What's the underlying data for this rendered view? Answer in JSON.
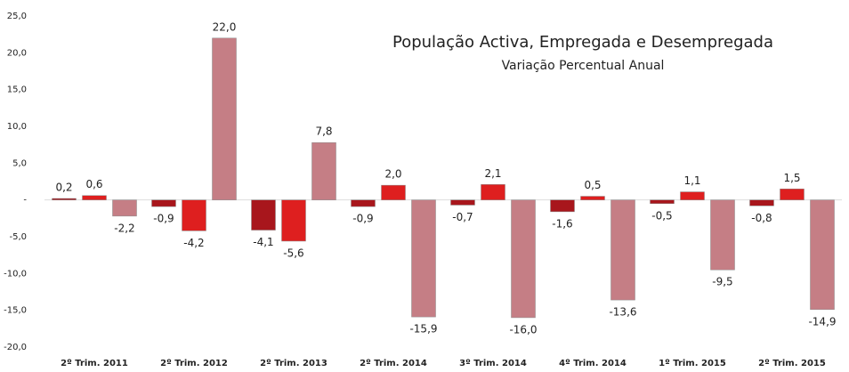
{
  "chart_data": {
    "type": "bar",
    "title": "População Activa, Empregada e Desempregada",
    "subtitle": "Variação Percentual Anual",
    "categories": [
      "2º Trim. 2011",
      "2º Trim. 2012",
      "2º Trim. 2013",
      "2º Trim. 2014",
      "3º Trim. 2014",
      "4º Trim. 2014",
      "1º Trim. 2015",
      "2º Trim. 2015"
    ],
    "series": [
      {
        "color": "#a8161c",
        "values": [
          0.2,
          -0.9,
          -4.1,
          -0.9,
          -0.7,
          -1.6,
          -0.5,
          -0.8
        ],
        "value_labels": [
          "0,2",
          "-0,9",
          "-4,1",
          "-0,9",
          "-0,7",
          "-1,6",
          "-0,5",
          "-0,8"
        ]
      },
      {
        "color": "#de1f1f",
        "values": [
          0.6,
          -4.2,
          -5.6,
          2.0,
          2.1,
          0.5,
          1.1,
          1.5
        ],
        "value_labels": [
          "0,6",
          "-4,2",
          "-5,6",
          "2,0",
          "2,1",
          "0,5",
          "1,1",
          "1,5"
        ]
      },
      {
        "color": "#c57e85",
        "values": [
          -2.2,
          22.0,
          7.8,
          -15.9,
          -16.0,
          -13.6,
          -9.5,
          -14.9
        ],
        "value_labels": [
          "-2,2",
          "22,0",
          "7,8",
          "-15,9",
          "-16,0",
          "-13,6",
          "-9,5",
          "-14,9"
        ]
      }
    ],
    "ylim": [
      -20,
      25
    ],
    "yticks": [
      {
        "value": -20,
        "label": "-20,0"
      },
      {
        "value": -15,
        "label": "-15,0"
      },
      {
        "value": -10,
        "label": "-10,0"
      },
      {
        "value": -5,
        "label": "-5,0"
      },
      {
        "value": 0,
        "label": "-"
      },
      {
        "value": 5,
        "label": "5,0"
      },
      {
        "value": 10,
        "label": "10,0"
      },
      {
        "value": 15,
        "label": "15,0"
      },
      {
        "value": 20,
        "label": "20,0"
      },
      {
        "value": 25,
        "label": "25,0"
      }
    ]
  }
}
